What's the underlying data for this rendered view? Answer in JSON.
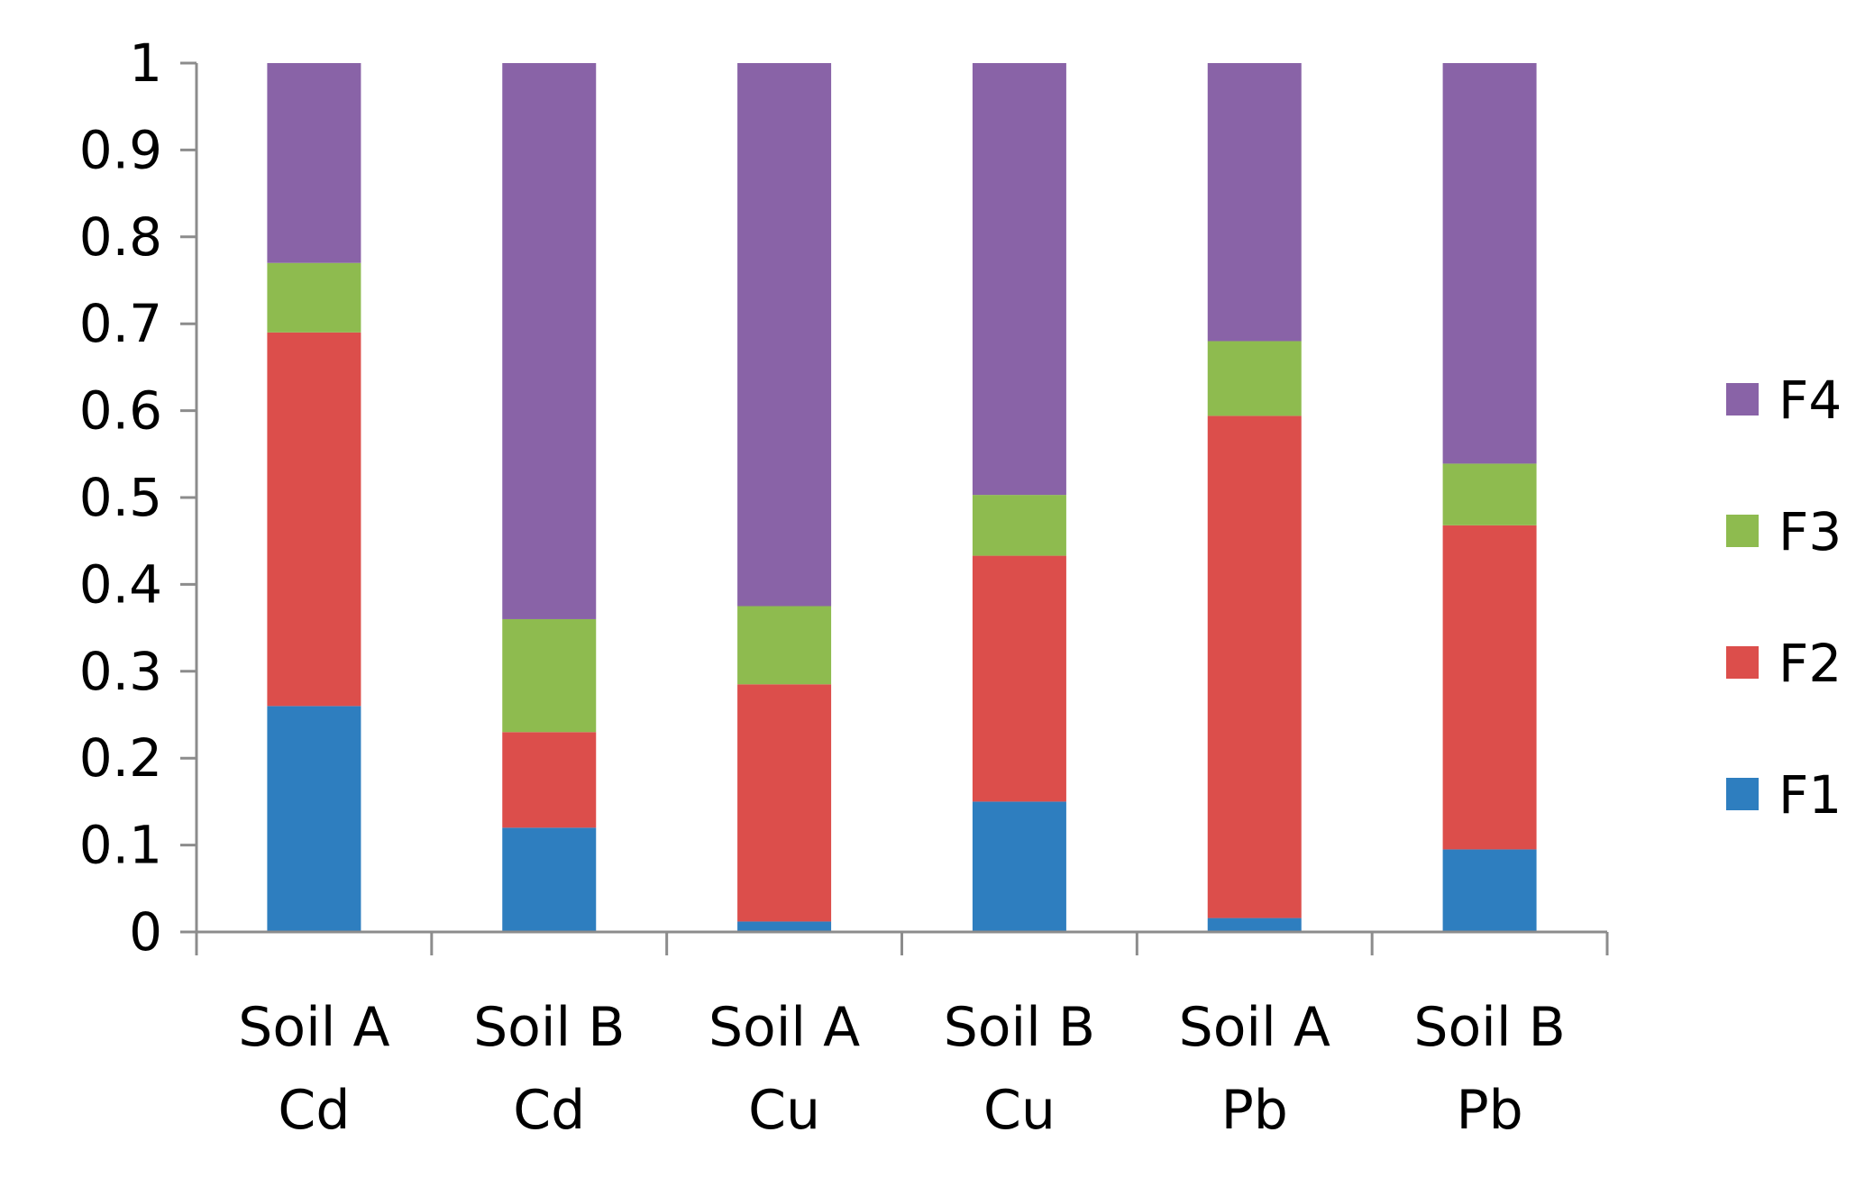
{
  "chart_data": {
    "type": "bar",
    "stacked": true,
    "categories": [
      [
        "Soil A",
        "Cd"
      ],
      [
        "Soil B",
        "Cd"
      ],
      [
        "Soil A",
        "Cu"
      ],
      [
        "Soil B",
        "Cu"
      ],
      [
        "Soil A",
        "Pb"
      ],
      [
        "Soil B",
        "Pb"
      ]
    ],
    "series": [
      {
        "name": "F1",
        "color": "#2e7ebf",
        "values": [
          0.26,
          0.12,
          0.012,
          0.15,
          0.016,
          0.095
        ]
      },
      {
        "name": "F2",
        "color": "#dc4e4b",
        "values": [
          0.43,
          0.11,
          0.273,
          0.283,
          0.578,
          0.373
        ]
      },
      {
        "name": "F3",
        "color": "#8ebb4f",
        "values": [
          0.08,
          0.13,
          0.09,
          0.07,
          0.086,
          0.071
        ]
      },
      {
        "name": "F4",
        "color": "#8963a7",
        "values": [
          0.23,
          0.64,
          0.625,
          0.497,
          0.32,
          0.461
        ]
      }
    ],
    "yticks": [
      "0",
      "0.1",
      "0.2",
      "0.3",
      "0.4",
      "0.5",
      "0.6",
      "0.7",
      "0.8",
      "0.9",
      "1"
    ],
    "ylim": [
      0,
      1
    ],
    "title": "",
    "xlabel": "",
    "ylabel": "",
    "grid": false,
    "legend_position": "right",
    "legend_order": [
      "F4",
      "F3",
      "F2",
      "F1"
    ]
  }
}
